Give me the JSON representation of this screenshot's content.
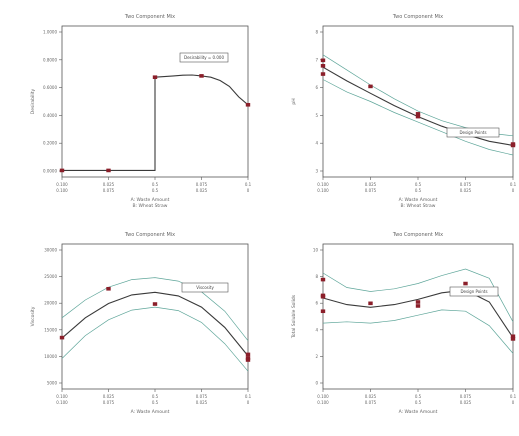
{
  "chart_data": [
    {
      "type": "line",
      "title": "Two Component Mix",
      "ylabel": "Desirability",
      "xlabel_a": "A: Waste Amount",
      "xlabel_b": "B: Wheat Straw",
      "x_ticks_a": [
        "0.100",
        "0.025",
        "0.5",
        "0.075",
        "0.1"
      ],
      "x_ticks_b": [
        "0.100",
        "0.075",
        "0.5",
        "0.025",
        "0"
      ],
      "y_ticks": [
        "1.0000",
        "0.8000",
        "0.6000",
        "0.4000",
        "0.2000",
        "0.0000"
      ],
      "xlim": [
        0,
        1
      ],
      "ylim": [
        -0.05,
        1.1
      ],
      "callout": "Desirability = 0.000",
      "series": [
        {
          "values": [
            [
              0,
              0
            ],
            [
              0.25,
              0
            ],
            [
              0.5,
              0
            ],
            [
              0.5,
              0.71
            ],
            [
              0.55,
              0.715
            ],
            [
              0.6,
              0.72
            ],
            [
              0.65,
              0.725
            ],
            [
              0.7,
              0.727
            ],
            [
              0.75,
              0.72
            ],
            [
              0.8,
              0.71
            ],
            [
              0.85,
              0.685
            ],
            [
              0.9,
              0.64
            ],
            [
              0.95,
              0.56
            ],
            [
              1.0,
              0.5
            ]
          ]
        }
      ],
      "points": [
        [
          0,
          0
        ],
        [
          0.25,
          0
        ],
        [
          0.5,
          0.71
        ],
        [
          0.75,
          0.72
        ],
        [
          1.0,
          0.5
        ]
      ]
    },
    {
      "type": "line",
      "title": "Two Component Mix",
      "ylabel": "pH",
      "xlabel_a": "A: Waste Amount",
      "xlabel_b": "B: Wheat Straw",
      "x_ticks_a": [
        "0.100",
        "0.025",
        "0.5",
        "0.075",
        "0.1"
      ],
      "x_ticks_b": [
        "0.100",
        "0.075",
        "0.5",
        "0.025",
        "0"
      ],
      "y_ticks": [
        "8",
        "7",
        "6",
        "5",
        "4",
        "3"
      ],
      "xlim": [
        0,
        1
      ],
      "ylim": [
        2.8,
        8.3
      ],
      "callout": "Design Points",
      "series": [
        {
          "values": [
            [
              0,
              6.8
            ],
            [
              0.125,
              6.3
            ],
            [
              0.25,
              5.85
            ],
            [
              0.375,
              5.4
            ],
            [
              0.5,
              5.0
            ],
            [
              0.625,
              4.65
            ],
            [
              0.75,
              4.35
            ],
            [
              0.875,
              4.1
            ],
            [
              1.0,
              3.95
            ]
          ]
        },
        {
          "values": [
            [
              0,
              7.25
            ],
            [
              0.125,
              6.7
            ],
            [
              0.25,
              6.15
            ],
            [
              0.375,
              5.65
            ],
            [
              0.5,
              5.2
            ],
            [
              0.625,
              4.85
            ],
            [
              0.75,
              4.6
            ],
            [
              0.875,
              4.4
            ],
            [
              1.0,
              4.3
            ]
          ]
        },
        {
          "values": [
            [
              0,
              6.35
            ],
            [
              0.125,
              5.9
            ],
            [
              0.25,
              5.55
            ],
            [
              0.375,
              5.15
            ],
            [
              0.5,
              4.8
            ],
            [
              0.625,
              4.45
            ],
            [
              0.75,
              4.1
            ],
            [
              0.875,
              3.8
            ],
            [
              1.0,
              3.6
            ]
          ]
        }
      ],
      "points": [
        [
          0,
          7.05
        ],
        [
          0,
          6.85
        ],
        [
          0,
          6.55
        ],
        [
          0.25,
          6.1
        ],
        [
          0.5,
          5.1
        ],
        [
          0.5,
          5.0
        ],
        [
          0.75,
          4.4
        ],
        [
          1.0,
          4.0
        ],
        [
          1.0,
          3.95
        ]
      ]
    },
    {
      "type": "line",
      "title": "Two Component Mix",
      "ylabel": "Viscosity",
      "xlabel_a": "A: Waste Amount",
      "x_ticks_a": [
        "0.100",
        "0.025",
        "0.5",
        "0.075",
        "0.1"
      ],
      "x_ticks_b": [
        "0.100",
        "0.075",
        "0.5",
        "0.025",
        "0"
      ],
      "y_ticks": [
        "30000",
        "25000",
        "20000",
        "15000",
        "10000",
        "5000"
      ],
      "xlim": [
        0,
        1
      ],
      "ylim": [
        2500,
        31000
      ],
      "callout": "Viscosity",
      "series": [
        {
          "values": [
            [
              0,
              12500
            ],
            [
              0.125,
              16500
            ],
            [
              0.25,
              19300
            ],
            [
              0.375,
              21000
            ],
            [
              0.5,
              21500
            ],
            [
              0.625,
              20800
            ],
            [
              0.75,
              18600
            ],
            [
              0.875,
              14600
            ],
            [
              1.0,
              9000
            ]
          ]
        },
        {
          "values": [
            [
              0,
              16500
            ],
            [
              0.125,
              20000
            ],
            [
              0.25,
              22500
            ],
            [
              0.375,
              24000
            ],
            [
              0.5,
              24400
            ],
            [
              0.625,
              23700
            ],
            [
              0.75,
              21600
            ],
            [
              0.875,
              17800
            ],
            [
              1.0,
              12000
            ]
          ]
        },
        {
          "values": [
            [
              0,
              8500
            ],
            [
              0.125,
              13000
            ],
            [
              0.25,
              16100
            ],
            [
              0.375,
              18000
            ],
            [
              0.5,
              18600
            ],
            [
              0.625,
              17900
            ],
            [
              0.75,
              15600
            ],
            [
              0.875,
              11400
            ],
            [
              1.0,
              6000
            ]
          ]
        }
      ],
      "points": [
        [
          0,
          12600
        ],
        [
          0.25,
          22200
        ],
        [
          0.5,
          19200
        ],
        [
          1.0,
          9300
        ],
        [
          1.0,
          8600
        ],
        [
          1.0,
          8200
        ]
      ]
    },
    {
      "type": "line",
      "title": "Two Component Mix",
      "ylabel": "Total Soluble Solids",
      "xlabel_a": "A: Waste Amount",
      "x_ticks_a": [
        "0.100",
        "0.025",
        "0.5",
        "0.075",
        "0.1"
      ],
      "x_ticks_b": [
        "0.100",
        "0.075",
        "0.5",
        "0.025",
        "0"
      ],
      "y_ticks": [
        "10",
        "8",
        "6",
        "4",
        "2",
        "0"
      ],
      "xlim": [
        0,
        1
      ],
      "ylim": [
        -0.5,
        10.5
      ],
      "callout": "Design Points",
      "series": [
        {
          "values": [
            [
              0,
              6.4
            ],
            [
              0.125,
              5.9
            ],
            [
              0.25,
              5.7
            ],
            [
              0.375,
              5.9
            ],
            [
              0.5,
              6.3
            ],
            [
              0.625,
              6.8
            ],
            [
              0.75,
              7.0
            ],
            [
              0.875,
              6.1
            ],
            [
              1.0,
              3.4
            ]
          ]
        },
        {
          "values": [
            [
              0,
              8.3
            ],
            [
              0.125,
              7.2
            ],
            [
              0.25,
              6.9
            ],
            [
              0.375,
              7.1
            ],
            [
              0.5,
              7.5
            ],
            [
              0.625,
              8.1
            ],
            [
              0.75,
              8.6
            ],
            [
              0.875,
              7.9
            ],
            [
              1.0,
              4.6
            ]
          ]
        },
        {
          "values": [
            [
              0,
              4.5
            ],
            [
              0.125,
              4.6
            ],
            [
              0.25,
              4.5
            ],
            [
              0.375,
              4.7
            ],
            [
              0.5,
              5.1
            ],
            [
              0.625,
              5.5
            ],
            [
              0.75,
              5.4
            ],
            [
              0.875,
              4.3
            ],
            [
              1.0,
              2.2
            ]
          ]
        }
      ],
      "points": [
        [
          0,
          7.8
        ],
        [
          0,
          6.6
        ],
        [
          0,
          6.5
        ],
        [
          0,
          5.4
        ],
        [
          0.25,
          6.0
        ],
        [
          0.5,
          6.1
        ],
        [
          0.5,
          5.8
        ],
        [
          0.75,
          7.5
        ],
        [
          1.0,
          3.5
        ],
        [
          1.0,
          3.3
        ]
      ]
    }
  ],
  "colors": {
    "line_main": "#3a3a3a",
    "line_band": "#5fa69a",
    "point": "#8b1f2a",
    "axis": "#555555",
    "text": "#666666"
  }
}
